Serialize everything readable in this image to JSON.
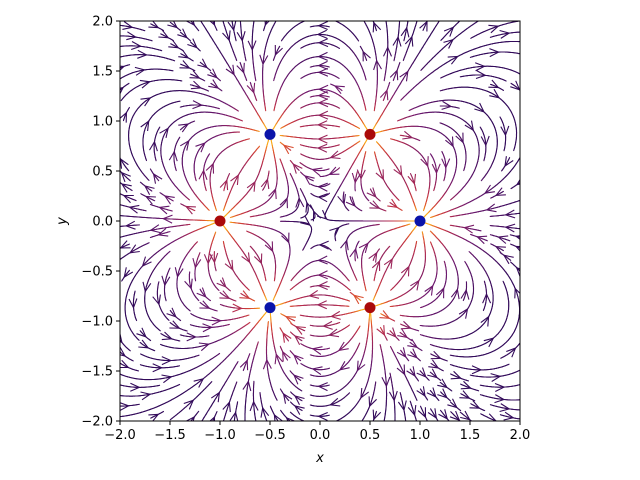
{
  "chart_data": {
    "type": "streamplot",
    "title": "",
    "xlabel": "x",
    "ylabel": "y",
    "xlim": [
      -2.0,
      2.0
    ],
    "ylim": [
      -2.0,
      2.0
    ],
    "x_ticks": [
      "−2.0",
      "−1.5",
      "−1.0",
      "−0.5",
      "0.0",
      "0.5",
      "1.0",
      "1.5",
      "2.0"
    ],
    "y_ticks": [
      "−2.0",
      "−1.5",
      "−1.0",
      "−0.5",
      "0.0",
      "0.5",
      "1.0",
      "1.5",
      "2.0"
    ],
    "grid": false,
    "colormap": "inferno-like (dark purple = weak field, orange = strong field)",
    "charges": [
      {
        "x": 1.0,
        "y": 0.0,
        "sign": -1,
        "color": "#0a14aa"
      },
      {
        "x": 0.5,
        "y": 0.866,
        "sign": 1,
        "color": "#aa0a0a"
      },
      {
        "x": -0.5,
        "y": 0.866,
        "sign": -1,
        "color": "#0a14aa"
      },
      {
        "x": -1.0,
        "y": 0.0,
        "sign": 1,
        "color": "#aa0a0a"
      },
      {
        "x": -0.5,
        "y": -0.866,
        "sign": -1,
        "color": "#0a14aa"
      },
      {
        "x": 0.5,
        "y": -0.866,
        "sign": 1,
        "color": "#aa0a0a"
      }
    ]
  }
}
